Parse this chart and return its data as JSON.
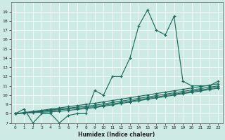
{
  "xlabel": "Humidex (Indice chaleur)",
  "bg_color": "#cdeae4",
  "line_color": "#1e6b5e",
  "grid_color": "#ffffff",
  "xlim": [
    -0.5,
    23.5
  ],
  "ylim": [
    7,
    20
  ],
  "xticks": [
    0,
    1,
    2,
    3,
    4,
    5,
    6,
    7,
    8,
    9,
    10,
    11,
    12,
    13,
    14,
    15,
    16,
    17,
    18,
    19,
    20,
    21,
    22,
    23
  ],
  "yticks": [
    7,
    8,
    9,
    10,
    11,
    12,
    13,
    14,
    15,
    16,
    17,
    18,
    19
  ],
  "l1x": [
    0,
    1,
    2,
    3,
    4,
    5,
    6,
    7,
    8,
    9,
    10,
    11,
    12,
    13,
    14,
    15,
    16,
    17,
    18,
    19,
    20,
    21,
    22,
    23
  ],
  "l1y": [
    8.0,
    8.5,
    7.0,
    8.0,
    8.0,
    7.0,
    7.8,
    8.0,
    8.0,
    10.5,
    10.0,
    12.0,
    12.0,
    14.0,
    17.5,
    19.2,
    17.0,
    16.5,
    18.5,
    11.5,
    11.0,
    11.0,
    11.0,
    11.5
  ],
  "l2x": [
    0,
    1,
    2,
    3,
    4,
    5,
    6,
    7,
    8,
    9,
    10,
    11,
    12,
    13,
    14,
    15,
    16,
    17,
    18,
    19,
    20,
    21,
    22,
    23
  ],
  "l2y": [
    8.0,
    8.05,
    8.1,
    8.15,
    8.2,
    8.25,
    8.35,
    8.45,
    8.55,
    8.65,
    8.8,
    8.95,
    9.1,
    9.25,
    9.4,
    9.55,
    9.7,
    9.85,
    10.0,
    10.15,
    10.3,
    10.45,
    10.6,
    10.75
  ],
  "l3x": [
    0,
    1,
    2,
    3,
    4,
    5,
    6,
    7,
    8,
    9,
    10,
    11,
    12,
    13,
    14,
    15,
    16,
    17,
    18,
    19,
    20,
    21,
    22,
    23
  ],
  "l3y": [
    8.0,
    8.08,
    8.16,
    8.24,
    8.33,
    8.41,
    8.5,
    8.58,
    8.66,
    8.75,
    8.9,
    9.05,
    9.2,
    9.35,
    9.5,
    9.65,
    9.8,
    9.95,
    10.1,
    10.25,
    10.4,
    10.55,
    10.7,
    10.85
  ],
  "l4x": [
    0,
    1,
    2,
    3,
    4,
    5,
    6,
    7,
    8,
    9,
    10,
    11,
    12,
    13,
    14,
    15,
    16,
    17,
    18,
    19,
    20,
    21,
    22,
    23
  ],
  "l4y": [
    8.0,
    8.1,
    8.2,
    8.3,
    8.4,
    8.5,
    8.6,
    8.7,
    8.8,
    8.9,
    9.05,
    9.2,
    9.35,
    9.5,
    9.65,
    9.8,
    9.95,
    10.1,
    10.25,
    10.4,
    10.55,
    10.7,
    10.85,
    11.0
  ],
  "l5x": [
    0,
    1,
    2,
    3,
    4,
    5,
    6,
    7,
    8,
    9,
    10,
    11,
    12,
    13,
    14,
    15,
    16,
    17,
    18,
    19,
    20,
    21,
    22,
    23
  ],
  "l5y": [
    8.0,
    8.12,
    8.24,
    8.36,
    8.5,
    8.62,
    8.75,
    8.87,
    9.0,
    9.12,
    9.27,
    9.42,
    9.57,
    9.72,
    9.87,
    10.02,
    10.17,
    10.32,
    10.47,
    10.62,
    10.77,
    10.92,
    11.07,
    11.22
  ]
}
